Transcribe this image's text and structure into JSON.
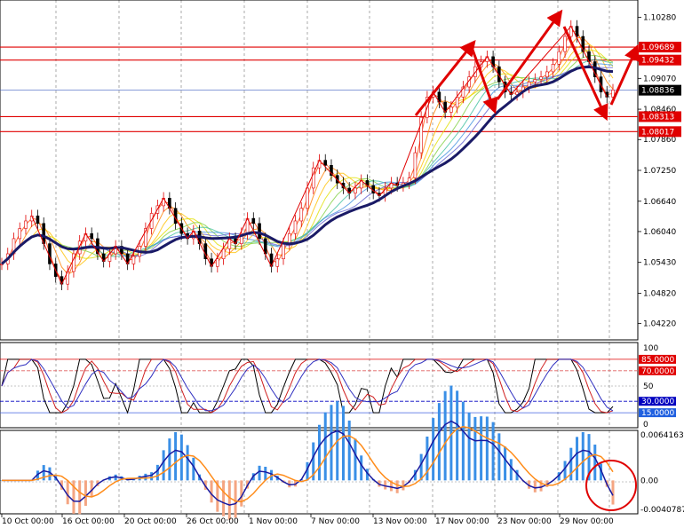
{
  "chart_data": [
    {
      "type": "candlestick",
      "pair_note": "",
      "ylim": [
        1.0395,
        1.1055
      ],
      "y_ticks": [
        "1.10280",
        "1.09070",
        "1.08460",
        "1.07860",
        "1.07250",
        "1.06640",
        "1.06040",
        "1.05430",
        "1.04820",
        "1.04220"
      ],
      "price_levels": [
        {
          "label": "1.09689",
          "value": 1.09689,
          "color": "#e00000"
        },
        {
          "label": "1.09432",
          "value": 1.09432,
          "color": "#e00000"
        },
        {
          "label": "1.08836",
          "value": 1.08836,
          "color": "#000000"
        },
        {
          "label": "1.08313",
          "value": 1.08313,
          "color": "#e00000"
        },
        {
          "label": "1.08017",
          "value": 1.08017,
          "color": "#e00000"
        }
      ],
      "x_labels": [
        "10 Oct 00:00",
        "16 Oct 00:00",
        "20 Oct 00:00",
        "26 Oct 00:00",
        "1 Nov 00:00",
        "7 Nov 00:00",
        "13 Nov 00:00",
        "17 Nov 00:00",
        "23 Nov 00:00",
        "29 Nov 00:00"
      ],
      "close_series": [
        1.054,
        1.056,
        1.059,
        1.061,
        1.0625,
        1.0635,
        1.062,
        1.058,
        1.054,
        1.0515,
        1.05,
        1.0525,
        1.056,
        1.0585,
        1.06,
        1.059,
        1.056,
        1.0545,
        1.056,
        1.0575,
        1.056,
        1.054,
        1.0555,
        1.0575,
        1.061,
        1.064,
        1.0655,
        1.067,
        1.065,
        1.062,
        1.06,
        1.059,
        1.0605,
        1.058,
        1.055,
        1.0535,
        1.055,
        1.057,
        1.059,
        1.058,
        1.06,
        1.063,
        1.062,
        1.059,
        1.056,
        1.0535,
        1.055,
        1.058,
        1.06,
        1.0625,
        1.065,
        1.069,
        1.073,
        1.0745,
        1.0735,
        1.0715,
        1.07,
        1.069,
        1.068,
        1.069,
        1.0705,
        1.0695,
        1.068,
        1.0675,
        1.069,
        1.07,
        1.0695,
        1.07,
        1.071,
        1.076,
        1.083,
        1.087,
        1.088,
        1.086,
        1.084,
        1.085,
        1.087,
        1.089,
        1.091,
        1.093,
        1.094,
        1.095,
        1.093,
        1.09,
        1.088,
        1.0875,
        1.088,
        1.089,
        1.09,
        1.0905,
        1.091,
        1.092,
        1.0935,
        1.096,
        1.099,
        1.101,
        1.099,
        1.096,
        1.094,
        1.091,
        1.088,
        1.087,
        1.0884
      ],
      "trend_arrows": [
        "up",
        "down",
        "up",
        "down",
        "up"
      ]
    },
    {
      "type": "line",
      "panel": "oscillator",
      "ylim": [
        0,
        100
      ],
      "y_ticks": [
        "100",
        "50",
        "0"
      ],
      "levels": [
        {
          "label": "85.0000",
          "value": 85
        },
        {
          "label": "70.0000",
          "value": 70
        },
        {
          "label": "30.0000",
          "value": 30
        },
        {
          "label": "15.0000",
          "value": 15
        }
      ]
    },
    {
      "type": "bar",
      "panel": "macd",
      "ylim": [
        -0.0040787,
        0.0064163
      ],
      "y_ticks": [
        "0.0064163",
        "0.00",
        "-0.0040787"
      ]
    }
  ],
  "colors": {
    "bull": "#e00000",
    "bear": "#000000",
    "ma_main": "#1a1a66",
    "level_red": "#e00000",
    "hist_pos": "#3a8fe6",
    "hist_neg": "#f4a582",
    "signal": "#ff8c1a",
    "macd_line": "#1a1aa0",
    "grid": "#000000"
  }
}
